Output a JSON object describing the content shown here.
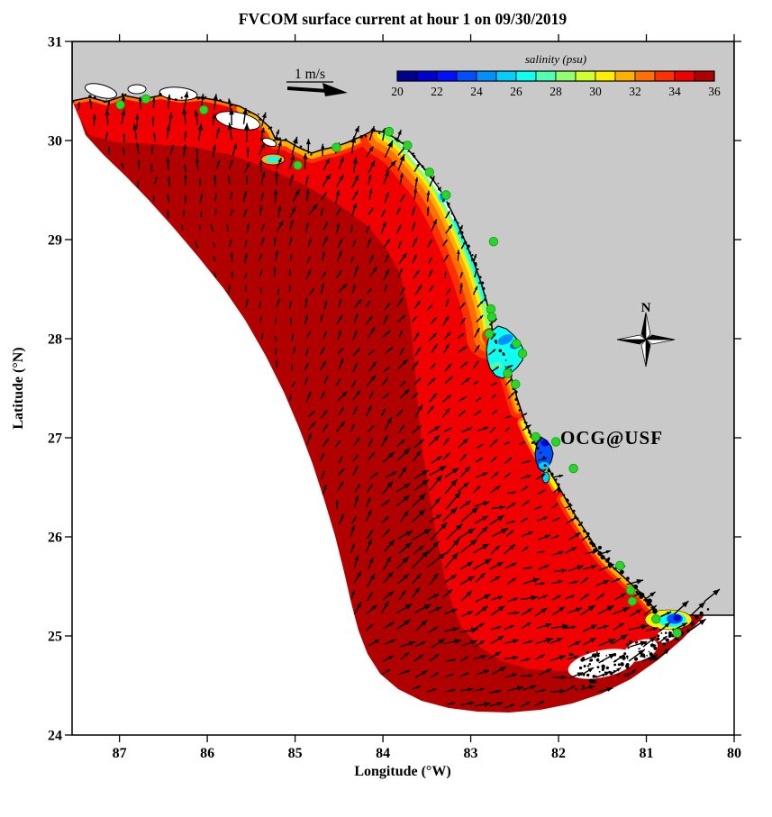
{
  "figure": {
    "title": "FVCOM surface current at hour 1 on 09/30/2019",
    "scale_arrow_label": "1 m/s",
    "compass_label": "N",
    "annotation": "OCG@USF"
  },
  "axes": {
    "xlabel": "Longitude (°W)",
    "ylabel": "Latitude (°N)",
    "x_ticks": [
      "87",
      "86",
      "85",
      "84",
      "83",
      "82",
      "81",
      "80"
    ],
    "y_ticks": [
      "24",
      "25",
      "26",
      "27",
      "28",
      "29",
      "30",
      "31"
    ],
    "xlim_west_to_east": [
      87.54,
      80.0
    ],
    "ylim": [
      24,
      31
    ]
  },
  "colorbar": {
    "label": "salinity (psu)",
    "tick_labels": [
      "20",
      "22",
      "24",
      "26",
      "28",
      "30",
      "32",
      "34",
      "36"
    ],
    "range": [
      20,
      36
    ],
    "colors": [
      "#000090",
      "#0000D0",
      "#0010FF",
      "#0050FF",
      "#0090FF",
      "#00D0FF",
      "#10FFF0",
      "#50FFB0",
      "#90FF70",
      "#D0FF30",
      "#FFF000",
      "#FFB000",
      "#FF7000",
      "#FF3000",
      "#F00000",
      "#B00000"
    ]
  },
  "colors": {
    "land": "#C9C9C9",
    "outside_domain": "#FFFFFF",
    "coastline": "#000000",
    "station": "#2BD42B",
    "station_edge": "#0A9E0A",
    "annotation": "#FF0000",
    "arrow": "#000000"
  },
  "chart_data": {
    "type": "map_vector_field",
    "title": "FVCOM surface current at hour 1 on 09/30/2019",
    "model": "FVCOM",
    "hour": 1,
    "date": "09/30/2019",
    "xlabel": "Longitude (°W)",
    "ylabel": "Latitude (°N)",
    "xlim": [
      87.54,
      80.0
    ],
    "ylim": [
      24,
      31
    ],
    "colorbar_label": "salinity (psu)",
    "colorbar_ticks": [
      20,
      22,
      24,
      26,
      28,
      30,
      32,
      34,
      36
    ],
    "scale_reference_m_per_s": 1,
    "salinity_shading": [
      {
        "region": "offshore shelf rim and Keys shelf",
        "psu": 36,
        "color": "#B00000"
      },
      {
        "region": "inner and mid shelf",
        "psu": 35,
        "color": "#F00000"
      },
      {
        "region": "coastal fringe",
        "psu": 32,
        "color": "#FF7000"
      },
      {
        "region": "nearshore Big Bend",
        "psu": 30,
        "color": "#FFF000"
      },
      {
        "region": "Tampa Bay",
        "psu": 27,
        "color": "#10FFF0"
      },
      {
        "region": "Charlotte Harbor / Florida Bay",
        "psu": 23,
        "color": "#0050FF"
      }
    ],
    "stations_format": [
      "lon_W",
      "lat_N"
    ],
    "stations": [
      [
        86.99,
        30.36
      ],
      [
        86.7,
        30.42
      ],
      [
        86.04,
        30.31
      ],
      [
        84.97,
        29.75
      ],
      [
        84.53,
        29.93
      ],
      [
        83.93,
        30.09
      ],
      [
        83.72,
        29.95
      ],
      [
        83.47,
        29.68
      ],
      [
        83.28,
        29.45
      ],
      [
        82.74,
        28.98
      ],
      [
        82.77,
        28.3
      ],
      [
        82.76,
        28.22
      ],
      [
        82.79,
        28.05
      ],
      [
        82.48,
        27.95
      ],
      [
        82.41,
        27.85
      ],
      [
        82.58,
        27.65
      ],
      [
        82.49,
        27.54
      ],
      [
        82.26,
        27.01
      ],
      [
        82.03,
        26.96
      ],
      [
        81.83,
        26.69
      ],
      [
        81.3,
        25.71
      ],
      [
        81.18,
        25.46
      ],
      [
        81.16,
        25.35
      ],
      [
        80.89,
        25.17
      ],
      [
        80.65,
        25.03
      ]
    ],
    "currents_format": [
      "lon_W",
      "lat_N",
      "dir_deg_ccw_from_east",
      "speed_m_per_s"
    ],
    "currents": [
      [
        86.82,
        30.15,
        80,
        0.3
      ],
      [
        85.79,
        30.15,
        85,
        0.33
      ],
      [
        84.77,
        30.05,
        75,
        0.37
      ],
      [
        83.95,
        29.78,
        60,
        0.3
      ],
      [
        87.33,
        30.05,
        90,
        0.2
      ],
      [
        86.92,
        29.6,
        100,
        0.12
      ],
      [
        86.1,
        28.87,
        120,
        0.1
      ],
      [
        85.28,
        27.96,
        110,
        0.12
      ],
      [
        83.44,
        29.33,
        70,
        0.2
      ],
      [
        83.03,
        28.69,
        80,
        0.17
      ],
      [
        84.46,
        28.69,
        60,
        0.17
      ],
      [
        84.05,
        27.78,
        45,
        0.2
      ],
      [
        83.74,
        27.05,
        50,
        0.25
      ],
      [
        83.44,
        26.33,
        35,
        0.47
      ],
      [
        83.03,
        25.78,
        30,
        0.5
      ],
      [
        83.54,
        25.6,
        40,
        0.42
      ],
      [
        84.67,
        26.33,
        90,
        0.17
      ],
      [
        84.36,
        25.6,
        85,
        0.2
      ],
      [
        82.62,
        26.33,
        10,
        0.2
      ],
      [
        82.31,
        25.78,
        15,
        0.17
      ],
      [
        82.62,
        27.05,
        20,
        0.13
      ],
      [
        82.21,
        26.6,
        15,
        0.13
      ],
      [
        82.82,
        27.51,
        30,
        0.13
      ],
      [
        82.62,
        25.05,
        10,
        0.3
      ],
      [
        82.0,
        24.87,
        15,
        0.33
      ],
      [
        81.38,
        24.78,
        20,
        0.37
      ],
      [
        80.87,
        24.96,
        25,
        0.3
      ],
      [
        83.03,
        24.51,
        0,
        0.23
      ],
      [
        82.21,
        24.42,
        5,
        0.2
      ],
      [
        81.59,
        24.51,
        10,
        0.27
      ],
      [
        80.56,
        25.05,
        30,
        0.33
      ]
    ]
  }
}
